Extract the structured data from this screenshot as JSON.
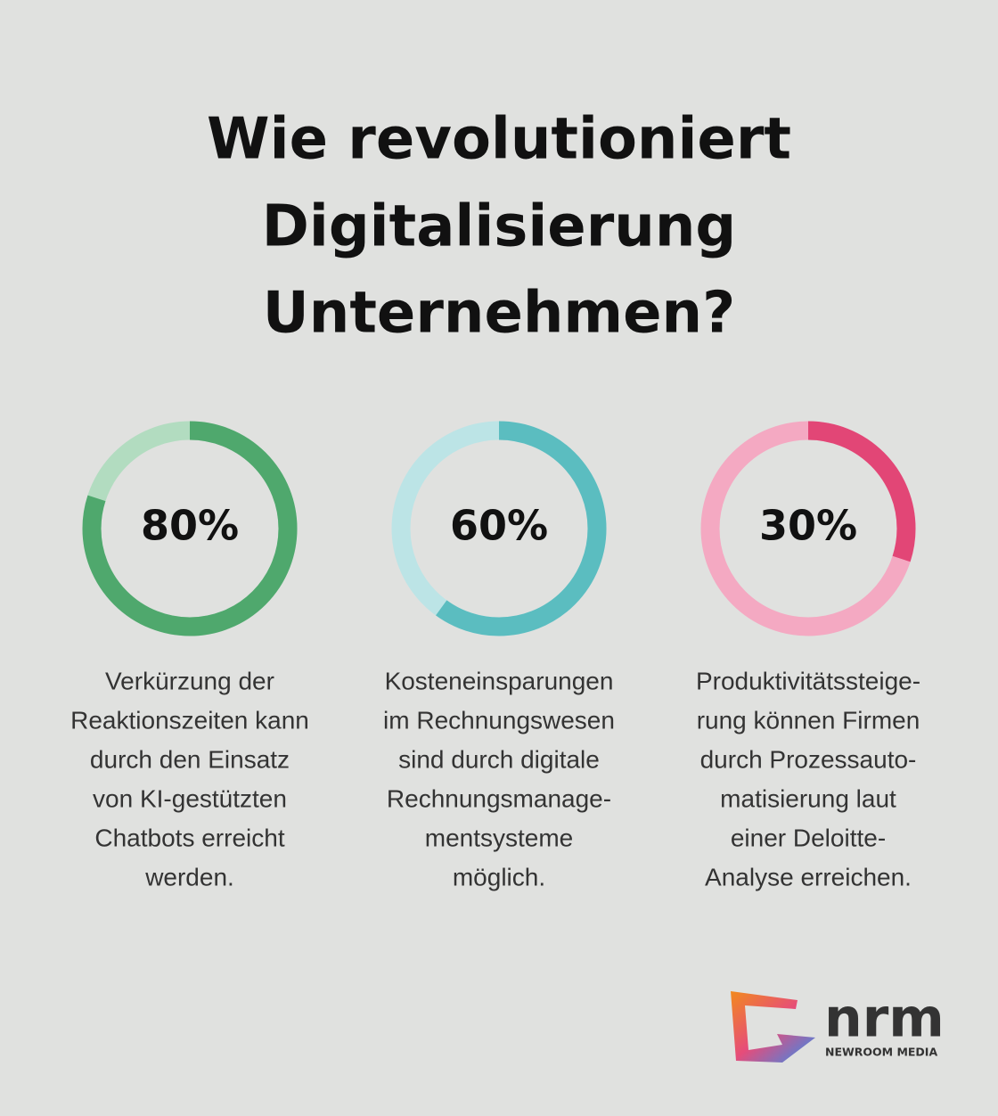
{
  "title": [
    "Wie revolutioniert",
    "Digitalisierung",
    "Unternehmen?"
  ],
  "chart_data": [
    {
      "type": "donut",
      "values": [
        80
      ],
      "value_labels": [
        "80%"
      ],
      "color": "#4fa86d",
      "track_color": "#b2dcc0",
      "caption": [
        "Verkürzung der",
        "Reaktionszeiten kann",
        "durch den Einsatz",
        "von KI-gestützten",
        "Chatbots erreicht",
        "werden."
      ]
    },
    {
      "type": "donut",
      "values": [
        60
      ],
      "value_labels": [
        "60%"
      ],
      "color": "#5bbdc0",
      "track_color": "#bce4e6",
      "caption": [
        "Kosteneinsparungen",
        "im Rechnungswesen",
        "sind durch digitale",
        "Rechnungsmanage-",
        "mentsysteme",
        "möglich."
      ]
    },
    {
      "type": "donut",
      "values": [
        30
      ],
      "value_labels": [
        "30%"
      ],
      "color": "#e24676",
      "track_color": "#f4a9c2",
      "caption": [
        "Produktivitätssteige-",
        "rung können Firmen",
        "durch Prozessauto-",
        "matisierung laut",
        "einer Deloitte-",
        "Analyse erreichen."
      ]
    }
  ],
  "logo": {
    "name": "nrm",
    "subtitle": "NEWROOM MEDIA"
  }
}
